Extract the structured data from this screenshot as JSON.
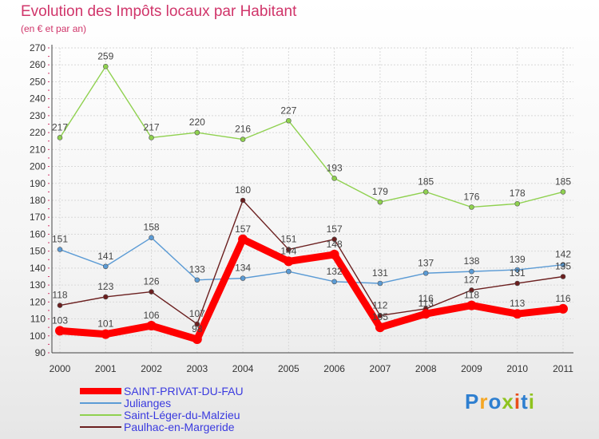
{
  "title": "Evolution des Impôts locaux par Habitant",
  "subtitle": "(en € et par an)",
  "logo_text": "Proxiti",
  "chart_data": {
    "type": "line",
    "x": [
      "2000",
      "2001",
      "2002",
      "2003",
      "2004",
      "2005",
      "2006",
      "2007",
      "2008",
      "2009",
      "2010",
      "2011"
    ],
    "ylim": [
      90,
      270
    ],
    "yticks": [
      90,
      100,
      110,
      120,
      130,
      140,
      150,
      160,
      170,
      180,
      190,
      200,
      210,
      220,
      230,
      240,
      250,
      260,
      270
    ],
    "grid": true,
    "legend_position": "bottom-left",
    "series": [
      {
        "name": "SAINT-PRIVAT-DU-FAU",
        "color": "#ff0000",
        "values": [
          103,
          101,
          106,
          98,
          157,
          144,
          148,
          105,
          113,
          118,
          113,
          116
        ],
        "labels": [
          "103",
          "101",
          "106",
          "98",
          "157",
          "144",
          "148",
          "105",
          "113",
          "118",
          "113",
          "116"
        ]
      },
      {
        "name": "Julianges",
        "color": "#5b9bd5",
        "values": [
          151,
          141,
          158,
          133,
          134,
          138,
          132,
          131,
          137,
          138,
          139,
          142
        ],
        "labels": [
          "151",
          "141",
          "158",
          "133",
          "134",
          "",
          "132",
          "131",
          "137",
          "138",
          "139",
          "142"
        ]
      },
      {
        "name": "Saint-Léger-du-Malzieu",
        "color": "#8fd14f",
        "values": [
          217,
          259,
          217,
          220,
          216,
          227,
          193,
          179,
          185,
          176,
          178,
          185
        ],
        "labels": [
          "217",
          "259",
          "217",
          "220",
          "216",
          "227",
          "193",
          "179",
          "185",
          "176",
          "178",
          "185"
        ]
      },
      {
        "name": "Paulhac-en-Margeride",
        "color": "#6b1f1f",
        "values": [
          118,
          123,
          126,
          107,
          180,
          151,
          157,
          112,
          116,
          127,
          131,
          135
        ],
        "labels": [
          "118",
          "123",
          "126",
          "107",
          "180",
          "151",
          "157",
          "112",
          "116",
          "127",
          "131",
          "135"
        ]
      }
    ]
  }
}
